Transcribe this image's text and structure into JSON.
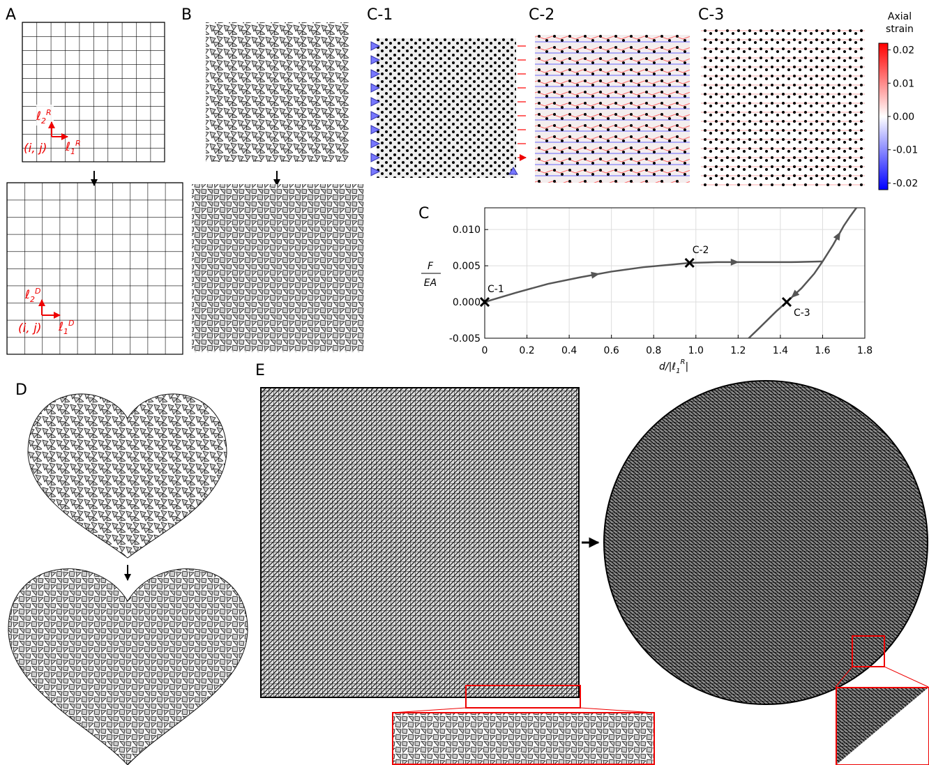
{
  "panel_labels": [
    "A",
    "B",
    "C-1",
    "C-2",
    "C-3",
    "C",
    "D",
    "E"
  ],
  "panel_a": {
    "top": {
      "l2": {
        "base": "ℓ",
        "sub": "2",
        "sup": "R"
      },
      "l1": {
        "base": "ℓ",
        "sub": "1",
        "sup": "R"
      },
      "origin": "(i, j)"
    },
    "bottom": {
      "l2": {
        "base": "ℓ",
        "sub": "2",
        "sup": "D"
      },
      "l1": {
        "base": "ℓ",
        "sub": "1",
        "sup": "D"
      },
      "origin": "(i, j)"
    }
  },
  "colorbar": {
    "title": [
      "Axial",
      "strain"
    ],
    "clim": [
      -0.022,
      0.022
    ],
    "colors": [
      "#0000ff",
      "#ffffff",
      "#ff0000"
    ],
    "ticks": [
      0.02,
      0.01,
      {
        "value": 0,
        "label": "0.00"
      },
      -0.01,
      -0.02
    ]
  },
  "chart_data": {
    "type": "line",
    "ylabel": {
      "numerator": "F",
      "denominator": "EA"
    },
    "xlabel": {
      "base": "d/|ℓ",
      "sub": "1",
      "sup": "R",
      "tail": "|"
    },
    "xlim": [
      0,
      1.8
    ],
    "ylim": [
      -0.005,
      0.013
    ],
    "xticks": [
      0,
      0.2,
      0.4,
      0.6,
      0.8,
      {
        "value": 1,
        "label": "1.0"
      },
      1.2,
      1.4,
      1.6,
      1.8
    ],
    "yticks": [
      -0.005,
      {
        "value": 0,
        "label": "0.000"
      },
      0.005,
      {
        "value": 0.01,
        "label": "0.010"
      }
    ],
    "grid": true,
    "series": [
      {
        "color": "#555555",
        "x": [
          0,
          0.15,
          0.3,
          0.45,
          0.6,
          0.75,
          0.9,
          0.97,
          1.1,
          1.27,
          1.45,
          1.6
        ],
        "values": [
          0,
          0.0013,
          0.0025,
          0.0034,
          0.0042,
          0.0048,
          0.0052,
          0.0054,
          0.0055,
          0.0055,
          0.0055,
          0.0056
        ]
      },
      {
        "color": "#555555",
        "x": [
          1.25,
          1.3,
          1.38,
          1.43,
          1.5,
          1.56,
          1.6,
          1.65,
          1.7,
          1.73,
          1.76
        ],
        "values": [
          -0.005,
          -0.0036,
          -0.0013,
          0,
          0.0019,
          0.0039,
          0.0056,
          0.0079,
          0.0105,
          0.0118,
          0.013
        ]
      }
    ],
    "points": [
      {
        "label": "C-1",
        "x": 0,
        "y": 0
      },
      {
        "label": "C-2",
        "x": 0.97,
        "y": 0.0054
      },
      {
        "label": "C-3",
        "x": 1.43,
        "y": 0
      }
    ]
  }
}
